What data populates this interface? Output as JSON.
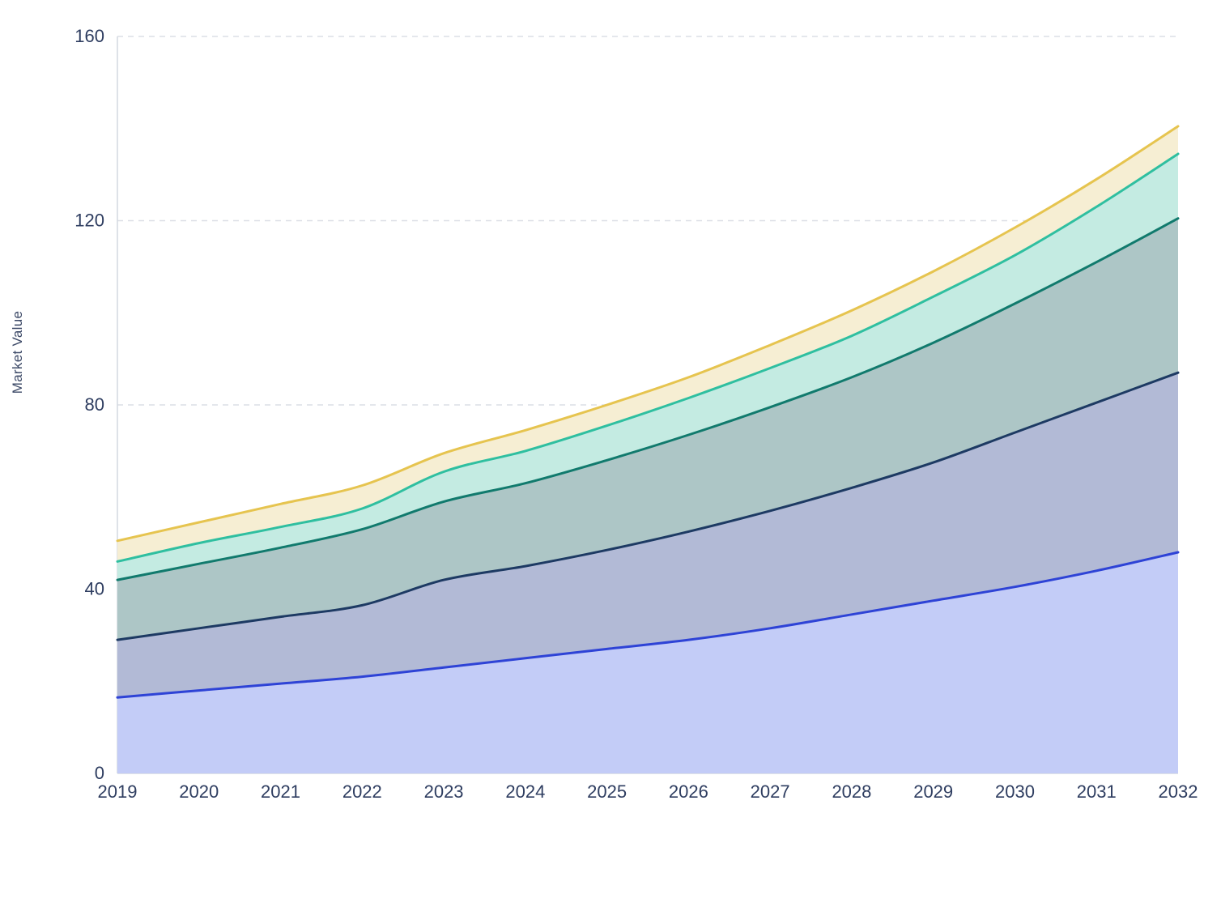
{
  "chart_data": {
    "type": "area",
    "stacked": true,
    "values_are_cumulative": true,
    "title": "",
    "xlabel": "",
    "ylabel": "Market Value",
    "x": [
      2019,
      2020,
      2021,
      2022,
      2023,
      2024,
      2025,
      2026,
      2027,
      2028,
      2029,
      2030,
      2031,
      2032
    ],
    "ylim": [
      0,
      160
    ],
    "yticks": [
      0,
      40,
      80,
      120,
      160
    ],
    "grid": "dashed-horizontal",
    "legend": "none",
    "series": [
      {
        "name": "series-blue",
        "line_color": "#2e43d6",
        "fill_color": "#c3ccf7",
        "cumulative": [
          16.5,
          18,
          19.5,
          21,
          23,
          25,
          27,
          29,
          31.5,
          34.5,
          37.5,
          40.5,
          44,
          48
        ]
      },
      {
        "name": "series-navy",
        "line_color": "#1d3a63",
        "fill_color": "#b2bad6",
        "cumulative": [
          29,
          31.5,
          34,
          36.5,
          42,
          45,
          48.5,
          52.5,
          57,
          62,
          67.5,
          74,
          80.5,
          87
        ]
      },
      {
        "name": "series-dark-teal",
        "line_color": "#117a6d",
        "fill_color": "#adc6c6",
        "cumulative": [
          42,
          45.5,
          49,
          53,
          59,
          63,
          68,
          73.5,
          79.5,
          86,
          93.5,
          102,
          111,
          120.5
        ]
      },
      {
        "name": "series-mint-teal",
        "line_color": "#2fbfa0",
        "fill_color": "#c4ebe2",
        "cumulative": [
          46,
          50,
          53.5,
          57.5,
          65.5,
          70,
          75.5,
          81.5,
          88,
          95,
          103.5,
          112.5,
          123,
          134.5
        ]
      },
      {
        "name": "series-gold",
        "line_color": "#e6c44f",
        "fill_color": "#f6eed3",
        "cumulative": [
          50.5,
          54.5,
          58.5,
          62.5,
          69.5,
          74.5,
          80,
          86,
          93,
          100.5,
          109,
          118.5,
          129,
          140.5
        ]
      }
    ],
    "axis_colors": {
      "tick_label": "#2e3d60",
      "grid_line": "#dcdfe6",
      "axis_line": "#d4d8e0"
    }
  }
}
